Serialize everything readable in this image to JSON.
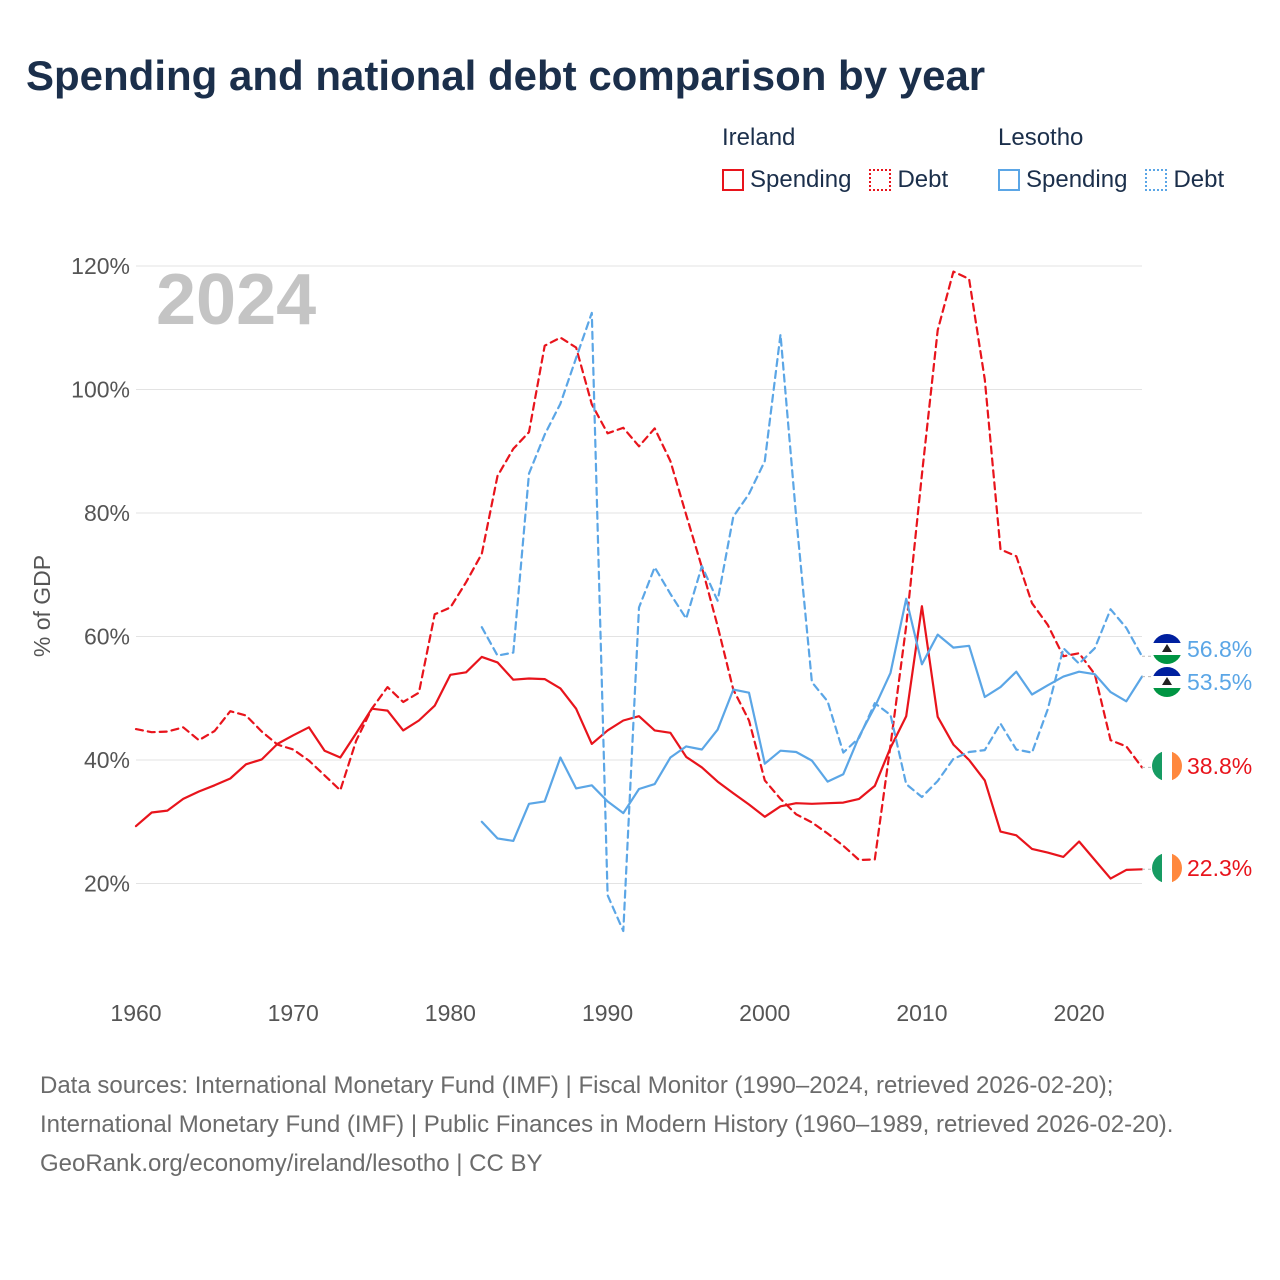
{
  "title": "Spending and national debt comparison by year",
  "legend": {
    "groups": [
      {
        "country": "Ireland",
        "items": [
          {
            "label": "Spending",
            "style": "solid",
            "color": "#e8141c"
          },
          {
            "label": "Debt",
            "style": "dotted",
            "color": "#e8141c"
          }
        ]
      },
      {
        "country": "Lesotho",
        "items": [
          {
            "label": "Spending",
            "style": "solid",
            "color": "#5ba6e6"
          },
          {
            "label": "Debt",
            "style": "dotted",
            "color": "#5ba6e6"
          }
        ]
      }
    ]
  },
  "year_label": "2024",
  "footer": {
    "sources": "Data sources: International Monetary Fund (IMF) | Fiscal Monitor (1990–2024, retrieved 2026-02-20); International Monetary Fund (IMF) | Public Finances in Modern History (1960–1989, retrieved 2026-02-20).",
    "credit": "GeoRank.org/economy/ireland/lesotho | CC BY"
  },
  "chart_data": {
    "type": "line",
    "title": "Spending and national debt comparison by year",
    "xlabel": "",
    "ylabel": "% of GDP",
    "xlim": [
      1960,
      2024
    ],
    "ylim": [
      0,
      120
    ],
    "xticks": [
      1960,
      1970,
      1980,
      1990,
      2000,
      2010,
      2020
    ],
    "yticks": [
      20,
      40,
      60,
      80,
      100,
      120
    ],
    "ytick_suffix": "%",
    "grid": true,
    "series": [
      {
        "name": "Ireland Debt",
        "country": "Ireland",
        "metric": "Debt",
        "color": "#e8141c",
        "dash": true,
        "end_label": "38.8%",
        "x": [
          1960,
          1961,
          1962,
          1963,
          1964,
          1965,
          1966,
          1967,
          1968,
          1969,
          1970,
          1971,
          1972,
          1973,
          1974,
          1975,
          1976,
          1977,
          1978,
          1979,
          1980,
          1981,
          1982,
          1983,
          1984,
          1985,
          1986,
          1987,
          1988,
          1989,
          1990,
          1991,
          1992,
          1993,
          1994,
          1995,
          1996,
          1997,
          1998,
          1999,
          2000,
          2001,
          2002,
          2003,
          2004,
          2005,
          2006,
          2007,
          2008,
          2009,
          2010,
          2011,
          2012,
          2013,
          2014,
          2015,
          2016,
          2017,
          2018,
          2019,
          2020,
          2021,
          2022,
          2023,
          2024
        ],
        "values": [
          45,
          44.5,
          44.6,
          45.3,
          43.2,
          44.7,
          47.9,
          47.2,
          44.6,
          42.5,
          41.7,
          39.9,
          37.5,
          35.1,
          43.1,
          48.3,
          51.8,
          49.4,
          50.9,
          63.6,
          64.7,
          68.8,
          73.4,
          86,
          90.4,
          93.1,
          107.1,
          108.4,
          106.8,
          97.6,
          92.9,
          93.8,
          90.8,
          93.7,
          88.4,
          79.7,
          71.2,
          61.7,
          51.4,
          46.4,
          36.7,
          33.7,
          31.2,
          29.9,
          28.1,
          26.1,
          23.8,
          23.9,
          42.4,
          61.7,
          86.2,
          109.6,
          119.1,
          117.9,
          101.6,
          74.1,
          73,
          65.4,
          61.9,
          56.8,
          57.3,
          53.9,
          43.2,
          42.2,
          38.8
        ]
      },
      {
        "name": "Ireland Spending",
        "country": "Ireland",
        "metric": "Spending",
        "color": "#e8141c",
        "dash": false,
        "end_label": "22.3%",
        "x": [
          1960,
          1961,
          1962,
          1963,
          1964,
          1965,
          1966,
          1967,
          1968,
          1969,
          1970,
          1971,
          1972,
          1973,
          1974,
          1975,
          1976,
          1977,
          1978,
          1979,
          1980,
          1981,
          1982,
          1983,
          1984,
          1985,
          1986,
          1987,
          1988,
          1989,
          1990,
          1991,
          1992,
          1993,
          1994,
          1995,
          1996,
          1997,
          1998,
          1999,
          2000,
          2001,
          2002,
          2003,
          2004,
          2005,
          2006,
          2007,
          2008,
          2009,
          2010,
          2011,
          2012,
          2013,
          2014,
          2015,
          2016,
          2017,
          2018,
          2019,
          2020,
          2021,
          2022,
          2023,
          2024
        ],
        "values": [
          29.3,
          31.5,
          31.8,
          33.7,
          34.9,
          35.9,
          37,
          39.3,
          40.1,
          42.6,
          44,
          45.3,
          41.5,
          40.4,
          44.3,
          48.3,
          48,
          44.8,
          46.4,
          48.8,
          53.8,
          54.2,
          56.7,
          55.8,
          53,
          53.2,
          53.1,
          51.6,
          48.3,
          42.6,
          44.8,
          46.4,
          47.1,
          44.8,
          44.4,
          40.5,
          38.8,
          36.5,
          34.6,
          32.8,
          30.8,
          32.5,
          33,
          32.9,
          33,
          33.1,
          33.7,
          35.8,
          42,
          47.1,
          64.9,
          47,
          42.5,
          40,
          36.7,
          28.4,
          27.8,
          25.6,
          25,
          24.3,
          26.8,
          23.8,
          20.8,
          22.2,
          22.3
        ]
      },
      {
        "name": "Lesotho Debt",
        "country": "Lesotho",
        "metric": "Debt",
        "color": "#5ba6e6",
        "dash": true,
        "end_label": "56.8%",
        "x": [
          1982,
          1983,
          1984,
          1985,
          1986,
          1987,
          1988,
          1989,
          1990,
          1991,
          1992,
          1993,
          1994,
          1995,
          1996,
          1997,
          1998,
          1999,
          2000,
          2001,
          2002,
          2003,
          2004,
          2005,
          2006,
          2007,
          2008,
          2009,
          2010,
          2011,
          2012,
          2013,
          2014,
          2015,
          2016,
          2017,
          2018,
          2019,
          2020,
          2021,
          2022,
          2023,
          2024
        ],
        "values": [
          61.5,
          56.9,
          57.4,
          86.4,
          92.7,
          97.7,
          105.1,
          112.4,
          18.1,
          12.3,
          64.7,
          71.2,
          66.9,
          62.9,
          71.4,
          65.8,
          79.4,
          83.1,
          88.4,
          108.9,
          79.3,
          52.6,
          49.5,
          41.2,
          43.6,
          49.2,
          47.3,
          36.1,
          34,
          36.6,
          40.2,
          41.3,
          41.6,
          45.9,
          41.7,
          41.2,
          48.2,
          58.1,
          55.6,
          58.1,
          64.4,
          61.4,
          56.8
        ]
      },
      {
        "name": "Lesotho Spending",
        "country": "Lesotho",
        "metric": "Spending",
        "color": "#5ba6e6",
        "dash": false,
        "end_label": "53.5%",
        "x": [
          1982,
          1983,
          1984,
          1985,
          1986,
          1987,
          1988,
          1989,
          1990,
          1991,
          1992,
          1993,
          1994,
          1995,
          1996,
          1997,
          1998,
          1999,
          2000,
          2001,
          2002,
          2003,
          2004,
          2005,
          2006,
          2007,
          2008,
          2009,
          2010,
          2011,
          2012,
          2013,
          2014,
          2015,
          2016,
          2017,
          2018,
          2019,
          2020,
          2021,
          2022,
          2023,
          2024
        ],
        "values": [
          30,
          27.3,
          26.9,
          32.9,
          33.3,
          40.4,
          35.4,
          35.9,
          33.3,
          31.4,
          35.3,
          36.1,
          40.4,
          42.2,
          41.7,
          44.9,
          51.4,
          50.9,
          39.4,
          41.5,
          41.3,
          39.9,
          36.5,
          37.7,
          43.8,
          48.6,
          54.1,
          66.1,
          55.5,
          60.3,
          58.2,
          58.5,
          50.2,
          51.8,
          54.3,
          50.6,
          52.1,
          53.5,
          54.3,
          53.9,
          51,
          49.5,
          53.5
        ]
      }
    ]
  }
}
